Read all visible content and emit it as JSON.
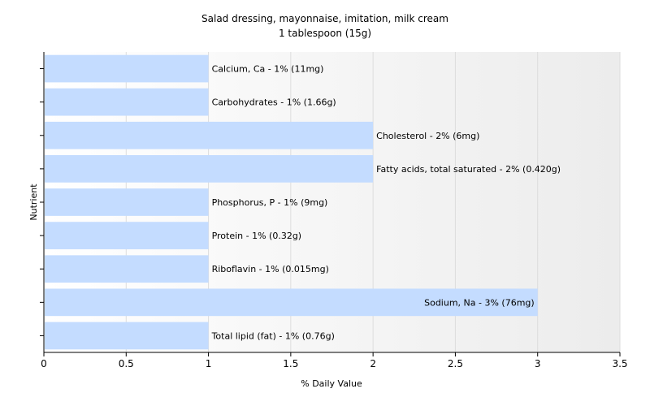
{
  "chart_data": {
    "type": "bar",
    "orientation": "horizontal",
    "title": "Salad dressing, mayonnaise, imitation, milk cream",
    "subtitle": "1 tablespoon (15g)",
    "xlabel": "% Daily Value",
    "ylabel": "Nutrient",
    "xlim": [
      0,
      3.5
    ],
    "xticks": [
      0,
      0.5,
      1,
      1.5,
      2,
      2.5,
      3,
      3.5
    ],
    "xtick_labels": [
      "0",
      "0.5",
      "1",
      "1.5",
      "2",
      "2.5",
      "3",
      "3.5"
    ],
    "grid": true,
    "bar_color": "#c4dcff",
    "categories": [
      "Calcium, Ca",
      "Carbohydrates",
      "Cholesterol",
      "Fatty acids, total saturated",
      "Phosphorus, P",
      "Protein",
      "Riboflavin",
      "Sodium, Na",
      "Total lipid (fat)"
    ],
    "values": [
      1,
      1,
      2,
      2,
      1,
      1,
      1,
      3,
      1
    ],
    "labels": [
      "Calcium, Ca - 1% (11mg)",
      "Carbohydrates - 1% (1.66g)",
      "Cholesterol - 2% (6mg)",
      "Fatty acids, total saturated - 2% (0.420g)",
      "Phosphorus, P - 1% (9mg)",
      "Protein - 1% (0.32g)",
      "Riboflavin - 1% (0.015mg)",
      "Sodium, Na - 3% (76mg)",
      "Total lipid (fat) - 1% (0.76g)"
    ]
  }
}
